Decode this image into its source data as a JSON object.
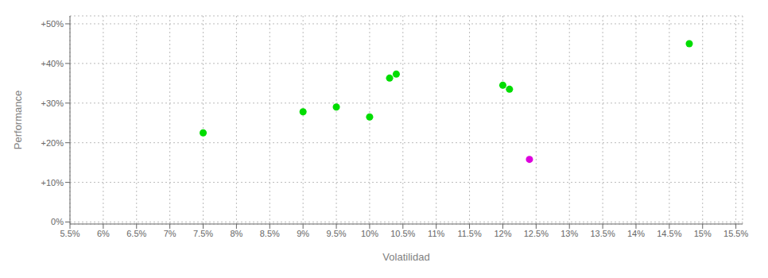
{
  "chart_data": {
    "type": "scatter",
    "xlabel": "Volatilidad",
    "ylabel": "Performance",
    "xlim": [
      0.055,
      0.156
    ],
    "ylim": [
      -0.005,
      0.52
    ],
    "xticks": [
      {
        "value": 0.055,
        "label": "5.5%"
      },
      {
        "value": 0.06,
        "label": "6%"
      },
      {
        "value": 0.065,
        "label": "6.5%"
      },
      {
        "value": 0.07,
        "label": "7%"
      },
      {
        "value": 0.075,
        "label": "7.5%"
      },
      {
        "value": 0.08,
        "label": "8%"
      },
      {
        "value": 0.085,
        "label": "8.5%"
      },
      {
        "value": 0.09,
        "label": "9%"
      },
      {
        "value": 0.095,
        "label": "9.5%"
      },
      {
        "value": 0.1,
        "label": "10%"
      },
      {
        "value": 0.105,
        "label": "10.5%"
      },
      {
        "value": 0.11,
        "label": "11%"
      },
      {
        "value": 0.115,
        "label": "11.5%"
      },
      {
        "value": 0.12,
        "label": "12%"
      },
      {
        "value": 0.125,
        "label": "12.5%"
      },
      {
        "value": 0.13,
        "label": "13%"
      },
      {
        "value": 0.135,
        "label": "13.5%"
      },
      {
        "value": 0.14,
        "label": "14%"
      },
      {
        "value": 0.145,
        "label": "14.5%"
      },
      {
        "value": 0.15,
        "label": "15%"
      },
      {
        "value": 0.155,
        "label": "15.5%"
      }
    ],
    "yticks": [
      {
        "value": 0.0,
        "label": "0%"
      },
      {
        "value": 0.1,
        "label": "+10%"
      },
      {
        "value": 0.2,
        "label": "+20%"
      },
      {
        "value": 0.3,
        "label": "+30%"
      },
      {
        "value": 0.4,
        "label": "+40%"
      },
      {
        "value": 0.5,
        "label": "+50%"
      }
    ],
    "grid": true,
    "series": [
      {
        "color": "#00dd00",
        "x": [
          0.075,
          0.09,
          0.095,
          0.1,
          0.103,
          0.104,
          0.12,
          0.121,
          0.148
        ],
        "values": [
          0.225,
          0.278,
          0.29,
          0.265,
          0.363,
          0.373,
          0.345,
          0.335,
          0.45
        ]
      },
      {
        "color": "#dd00dd",
        "x": [
          0.124
        ],
        "values": [
          0.158
        ]
      }
    ]
  }
}
